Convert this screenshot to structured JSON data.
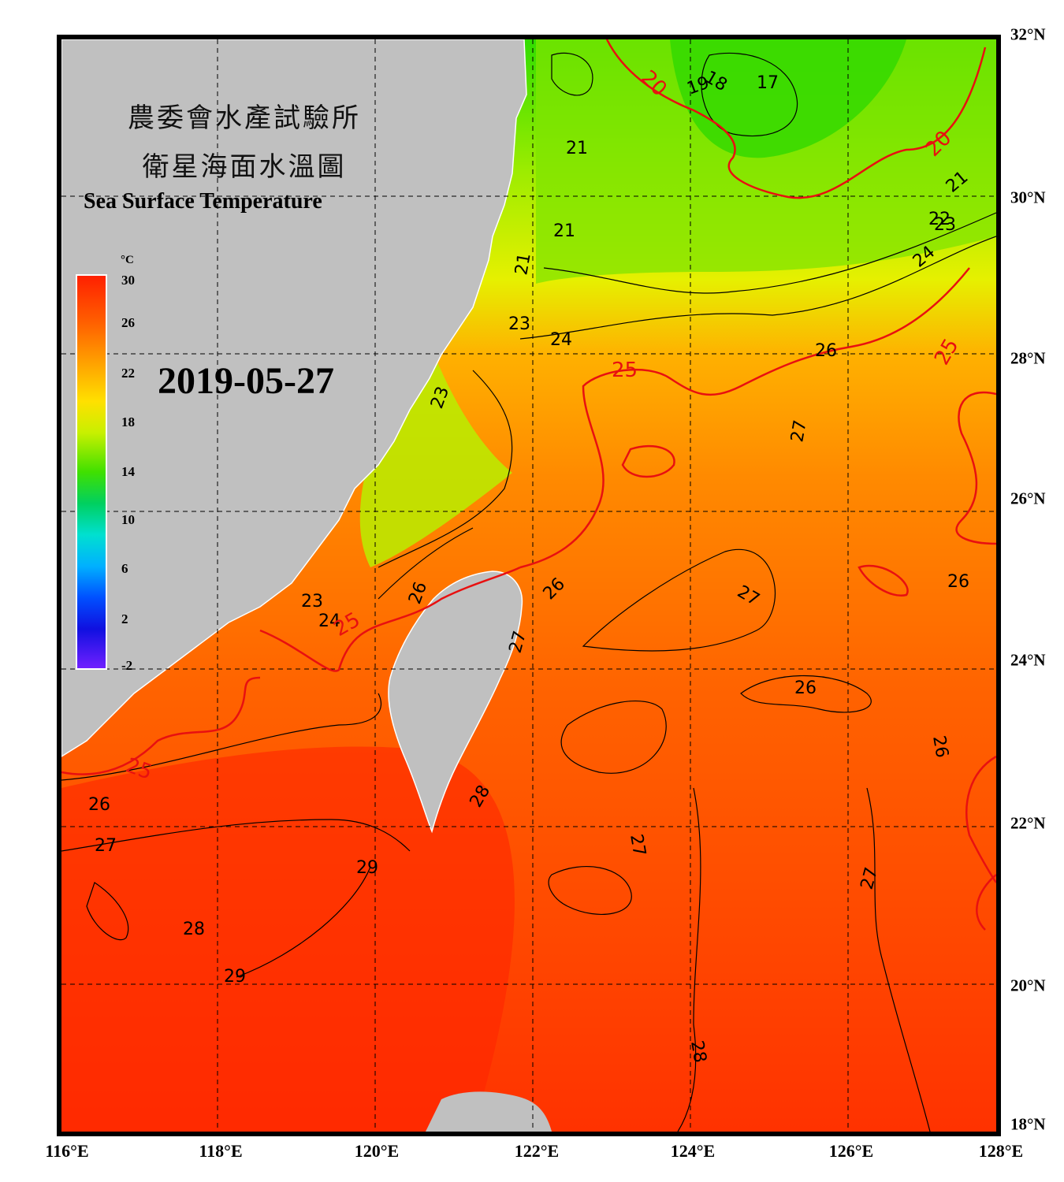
{
  "title_zh_line1": "農委會水產試驗所",
  "title_zh_line2": "衛星海面水溫圖",
  "title_en": "Sea Surface Temperature",
  "date": "2019-05-27",
  "colorbar": {
    "unit": "°C",
    "ticks": [
      "30",
      "26",
      "22",
      "18",
      "14",
      "10",
      "6",
      "2",
      "-2"
    ],
    "range": [
      -2,
      30
    ]
  },
  "axes": {
    "latitude_labels": [
      "32°N",
      "30°N",
      "28°N",
      "26°N",
      "24°N",
      "22°N",
      "20°N",
      "18°N"
    ],
    "longitude_labels": [
      "116°E",
      "118°E",
      "120°E",
      "122°E",
      "124°E",
      "126°E",
      "128°E"
    ]
  },
  "contour_labels": [
    "17",
    "18",
    "19",
    "20",
    "20",
    "21",
    "21",
    "21",
    "21",
    "22",
    "23",
    "23",
    "23",
    "23",
    "24",
    "24",
    "24",
    "25",
    "25",
    "25",
    "25",
    "26",
    "26",
    "26",
    "26",
    "26",
    "26",
    "26",
    "27",
    "27",
    "27",
    "27",
    "27",
    "27",
    "28",
    "28",
    "28",
    "29",
    "29"
  ],
  "colors": {
    "land": "#c0c0c0",
    "warm_sea": "#ff3a00",
    "cool_sea": "#30dd00",
    "isotherm_25_20": "#ee1111",
    "isotherm": "#000000"
  }
}
